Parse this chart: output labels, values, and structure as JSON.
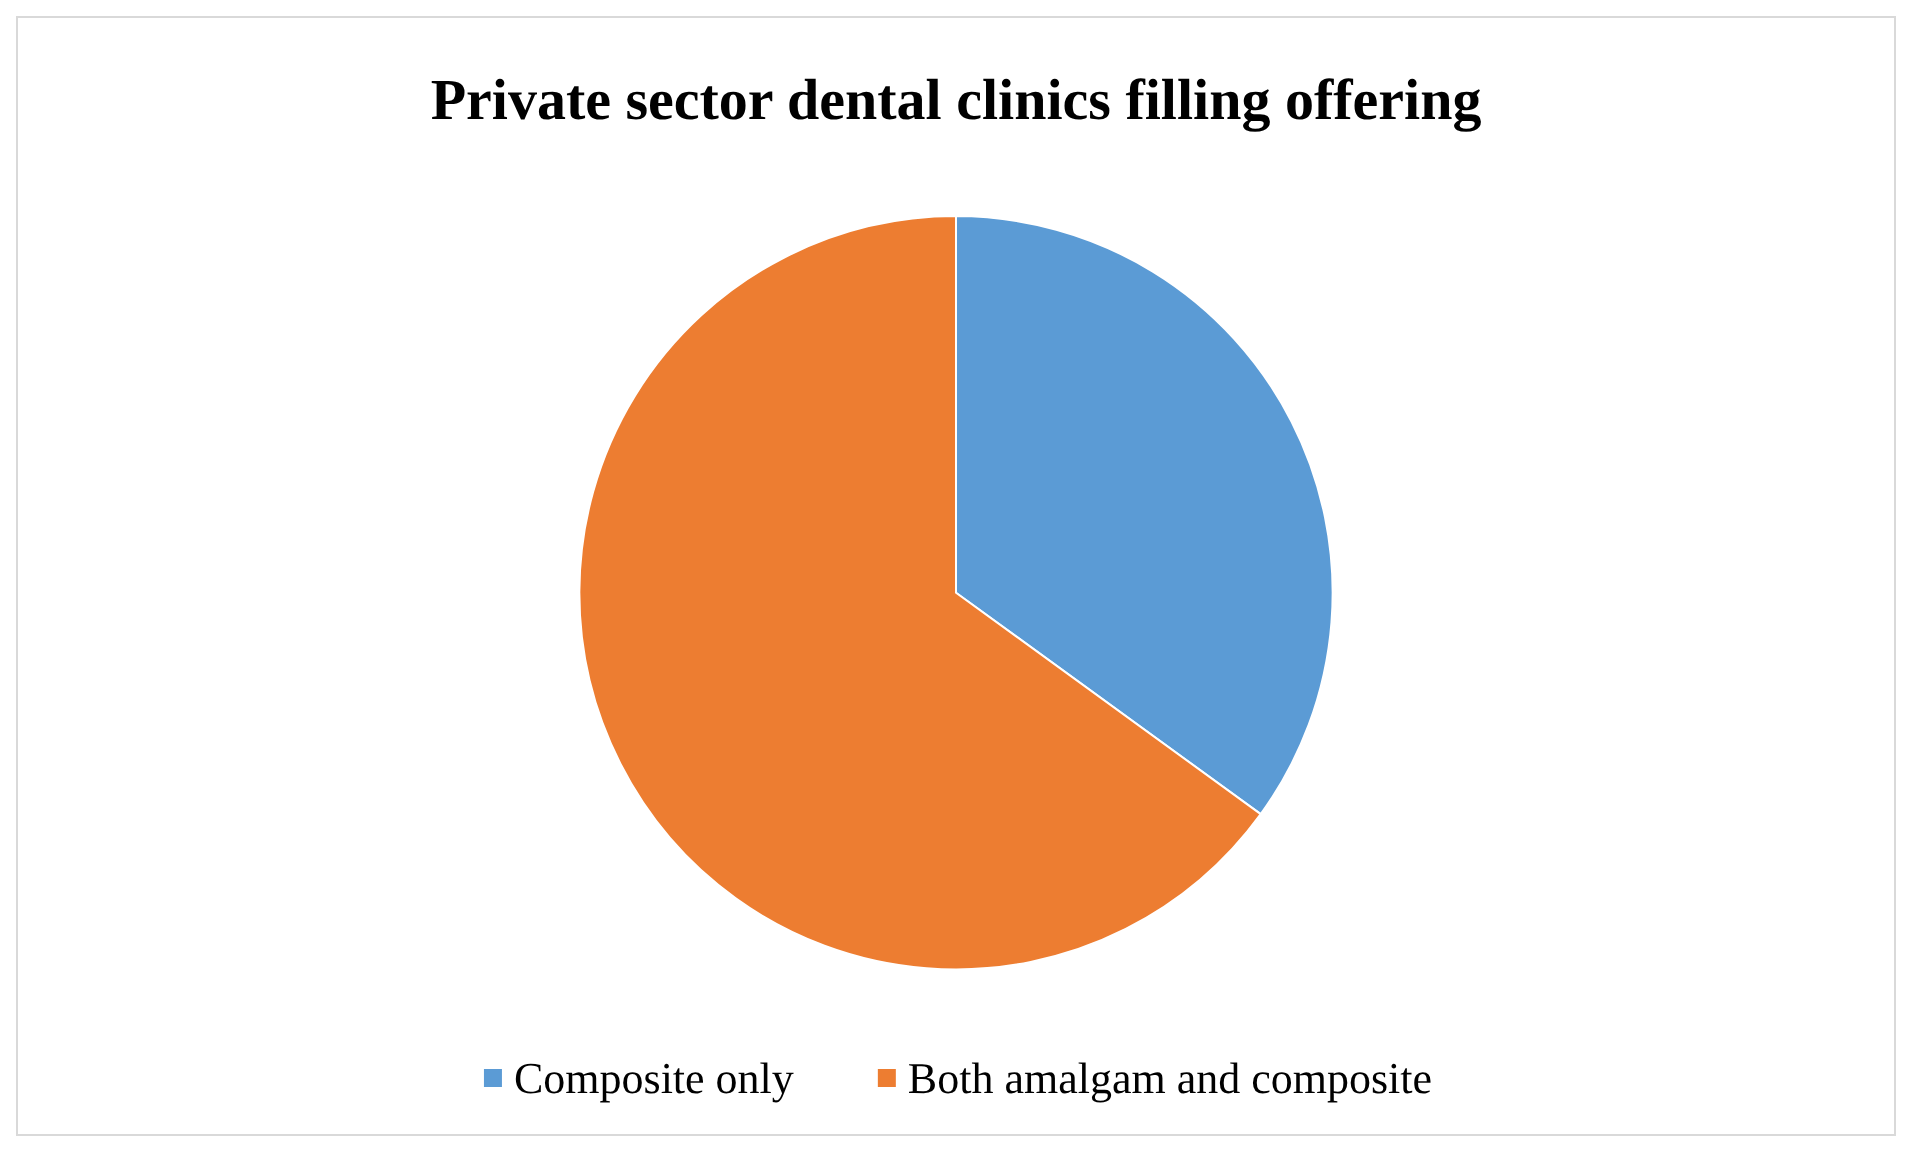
{
  "chart_data": {
    "type": "pie",
    "title": "Private sector dental clinics filling offering",
    "categories": [
      "Composite only",
      "Both amalgam and composite"
    ],
    "values": [
      35,
      65
    ],
    "colors": [
      "#5b9bd5",
      "#ed7d31"
    ],
    "legend": "bottom"
  }
}
